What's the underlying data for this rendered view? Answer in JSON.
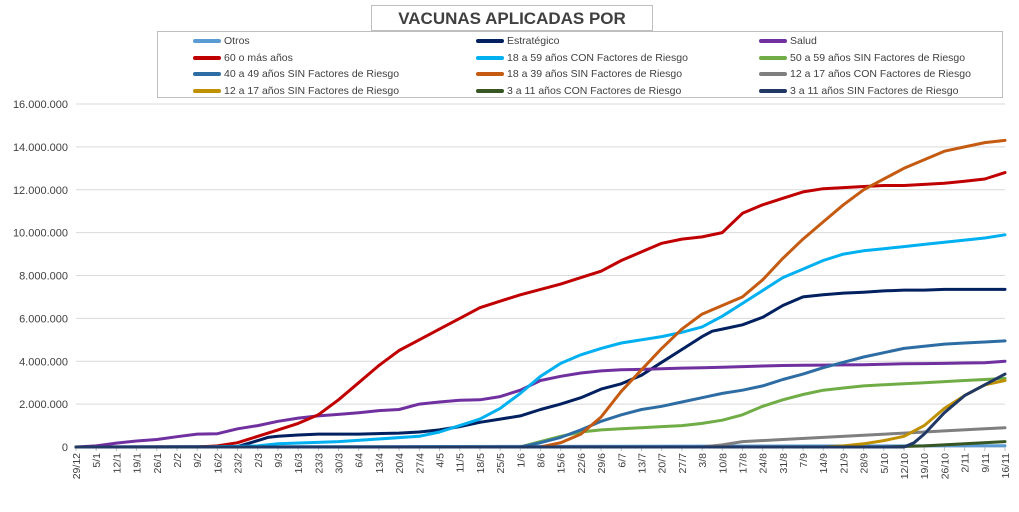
{
  "chart_data": {
    "type": "line",
    "title": "VACUNAS APLICADAS POR SECTOR",
    "xlabel": "",
    "ylabel": "",
    "ylim": [
      0,
      16000000
    ],
    "y_ticks": [
      "0",
      "2.000.000",
      "4.000.000",
      "6.000.000",
      "8.000.000",
      "10.000.000",
      "12.000.000",
      "14.000.000",
      "16.000.000"
    ],
    "x_ticks": [
      "29/12",
      "5/1",
      "12/1",
      "19/1",
      "26/1",
      "2/2",
      "9/2",
      "16/2",
      "23/2",
      "2/3",
      "9/3",
      "16/3",
      "23/3",
      "30/3",
      "6/4",
      "13/4",
      "20/4",
      "27/4",
      "4/5",
      "11/5",
      "18/5",
      "25/5",
      "1/6",
      "8/6",
      "15/6",
      "22/6",
      "29/6",
      "6/7",
      "13/7",
      "20/7",
      "27/7",
      "3/8",
      "10/8",
      "17/8",
      "24/8",
      "31/8",
      "7/9",
      "14/9",
      "21/9",
      "28/9",
      "5/10",
      "12/10",
      "19/10",
      "26/10",
      "2/11",
      "9/11",
      "16/11"
    ],
    "grid": "horizontal",
    "legend": "top",
    "series": [
      {
        "name": "Otros",
        "color": "#5b9bd5",
        "x": [
          0,
          46
        ],
        "values": [
          0,
          60000
        ]
      },
      {
        "name": "Estratégico",
        "color": "#002060",
        "x": [
          0,
          8,
          9,
          9.5,
          10,
          11,
          12,
          14,
          16,
          17,
          18,
          19,
          20,
          21,
          22,
          23,
          24,
          25,
          26,
          27,
          28,
          29,
          30,
          31,
          31.5,
          32,
          33,
          34,
          35,
          36,
          37,
          38,
          39,
          40,
          41,
          42,
          43,
          44,
          45,
          46
        ],
        "values": [
          0,
          20000,
          300000,
          450000,
          500000,
          560000,
          600000,
          600000,
          650000,
          700000,
          800000,
          950000,
          1150000,
          1300000,
          1450000,
          1750000,
          2000000,
          2300000,
          2700000,
          2950000,
          3350000,
          3950000,
          4550000,
          5150000,
          5400000,
          5500000,
          5700000,
          6050000,
          6600000,
          7000000,
          7100000,
          7180000,
          7220000,
          7280000,
          7320000,
          7320000,
          7350000,
          7350000,
          7350000,
          7350000
        ]
      },
      {
        "name": "Salud",
        "color": "#7030a0",
        "x": [
          0,
          1,
          2,
          3,
          4,
          5,
          6,
          7,
          8,
          9,
          10,
          11,
          12,
          13,
          14,
          15,
          16,
          17,
          18,
          19,
          20,
          21,
          22,
          23,
          24,
          25,
          26,
          27,
          28,
          29,
          30,
          31,
          32,
          33,
          34,
          35,
          36,
          37,
          38,
          39,
          40,
          41,
          42,
          43,
          44,
          45,
          46
        ],
        "values": [
          0,
          50000,
          180000,
          280000,
          350000,
          480000,
          600000,
          620000,
          850000,
          1000000,
          1200000,
          1350000,
          1450000,
          1520000,
          1600000,
          1700000,
          1750000,
          2000000,
          2100000,
          2180000,
          2200000,
          2350000,
          2650000,
          3100000,
          3300000,
          3450000,
          3550000,
          3600000,
          3620000,
          3650000,
          3680000,
          3700000,
          3720000,
          3750000,
          3780000,
          3800000,
          3810000,
          3820000,
          3830000,
          3840000,
          3860000,
          3880000,
          3890000,
          3900000,
          3920000,
          3930000,
          4000000
        ]
      },
      {
        "name": "60 o más años",
        "color": "#c00000",
        "x": [
          0,
          6,
          7,
          8,
          9,
          10,
          11,
          12,
          13,
          14,
          15,
          16,
          17,
          18,
          19,
          20,
          21,
          22,
          23,
          24,
          25,
          26,
          27,
          28,
          29,
          30,
          31,
          32,
          33,
          34,
          35,
          36,
          37,
          38,
          39,
          40,
          41,
          42,
          43,
          44,
          45,
          46
        ],
        "values": [
          0,
          0,
          50000,
          200000,
          500000,
          800000,
          1100000,
          1500000,
          2200000,
          3000000,
          3800000,
          4500000,
          5000000,
          5500000,
          6000000,
          6500000,
          6800000,
          7100000,
          7350000,
          7600000,
          7900000,
          8200000,
          8700000,
          9100000,
          9500000,
          9700000,
          9800000,
          10000000,
          10900000,
          11300000,
          11600000,
          11900000,
          12050000,
          12100000,
          12150000,
          12200000,
          12200000,
          12250000,
          12300000,
          12400000,
          12500000,
          12800000
        ]
      },
      {
        "name": "18 a 59 años CON Factores de Riesgo",
        "color": "#00b0f0",
        "x": [
          0,
          6,
          9,
          10,
          13,
          17,
          18,
          19,
          20,
          21,
          22,
          23,
          24,
          25,
          26,
          27,
          28,
          29,
          30,
          31,
          32,
          33,
          34,
          35,
          36,
          37,
          38,
          39,
          40,
          41,
          42,
          43,
          44,
          45,
          46
        ],
        "values": [
          0,
          0,
          50000,
          150000,
          250000,
          500000,
          700000,
          1000000,
          1300000,
          1800000,
          2500000,
          3300000,
          3900000,
          4300000,
          4600000,
          4850000,
          5000000,
          5150000,
          5350000,
          5600000,
          6100000,
          6700000,
          7300000,
          7900000,
          8300000,
          8700000,
          9000000,
          9150000,
          9250000,
          9350000,
          9450000,
          9550000,
          9650000,
          9750000,
          9900000
        ]
      },
      {
        "name": "50 a 59 años SIN Factores de Riesgo",
        "color": "#70ad47",
        "x": [
          0,
          22,
          23,
          24,
          25,
          26,
          27,
          28,
          29,
          30,
          31,
          32,
          33,
          34,
          35,
          36,
          37,
          38,
          39,
          40,
          41,
          42,
          43,
          44,
          45,
          46
        ],
        "values": [
          0,
          0,
          250000,
          500000,
          700000,
          800000,
          850000,
          900000,
          950000,
          1000000,
          1100000,
          1250000,
          1500000,
          1900000,
          2200000,
          2450000,
          2650000,
          2750000,
          2850000,
          2900000,
          2950000,
          3000000,
          3050000,
          3100000,
          3150000,
          3200000
        ]
      },
      {
        "name": "40 a 49 años SIN Factores de Riesgo",
        "color": "#2e6da4",
        "x": [
          0,
          22,
          23,
          24,
          25,
          26,
          27,
          28,
          29,
          30,
          31,
          32,
          33,
          34,
          35,
          36,
          37,
          38,
          39,
          40,
          41,
          42,
          43,
          44,
          45,
          46
        ],
        "values": [
          0,
          0,
          200000,
          450000,
          800000,
          1200000,
          1500000,
          1750000,
          1900000,
          2100000,
          2300000,
          2500000,
          2650000,
          2850000,
          3150000,
          3400000,
          3700000,
          3950000,
          4200000,
          4400000,
          4600000,
          4700000,
          4800000,
          4850000,
          4900000,
          4950000
        ]
      },
      {
        "name": "18 a 39 años SIN Factores de Riesgo",
        "color": "#c55a11",
        "x": [
          0,
          23,
          24,
          25,
          26,
          27,
          28,
          29,
          30,
          31,
          32,
          33,
          34,
          35,
          36,
          37,
          38,
          39,
          40,
          41,
          42,
          43,
          44,
          45,
          46
        ],
        "values": [
          0,
          0,
          200000,
          600000,
          1400000,
          2600000,
          3600000,
          4600000,
          5500000,
          6200000,
          6600000,
          7000000,
          7800000,
          8800000,
          9700000,
          10500000,
          11300000,
          12000000,
          12500000,
          13000000,
          13400000,
          13800000,
          14000000,
          14200000,
          14300000
        ]
      },
      {
        "name": "12 a 17 años CON Factores de Riesgo",
        "color": "#7f7f7f",
        "x": [
          0,
          31,
          32,
          33,
          35,
          37,
          39,
          41,
          43,
          45,
          46
        ],
        "values": [
          0,
          0,
          100000,
          250000,
          350000,
          450000,
          550000,
          650000,
          750000,
          850000,
          900000
        ]
      },
      {
        "name": "12 a 17 años SIN Factores de Riesgo",
        "color": "#bf9000",
        "x": [
          0,
          37,
          38,
          39,
          40,
          41,
          42,
          43,
          44,
          45,
          46
        ],
        "values": [
          0,
          0,
          50000,
          150000,
          300000,
          500000,
          1000000,
          1800000,
          2400000,
          2900000,
          3100000
        ]
      },
      {
        "name": "3 a 11 años CON Factores de Riesgo",
        "color": "#375623",
        "x": [
          0,
          40,
          42,
          44,
          46
        ],
        "values": [
          0,
          0,
          50000,
          150000,
          250000
        ]
      },
      {
        "name": "3 a 11 años SIN Factores de Riesgo",
        "color": "#203864",
        "x": [
          0,
          41,
          41.5,
          42,
          43,
          44,
          45,
          46
        ],
        "values": [
          0,
          0,
          200000,
          600000,
          1600000,
          2400000,
          2900000,
          3400000
        ]
      }
    ]
  }
}
